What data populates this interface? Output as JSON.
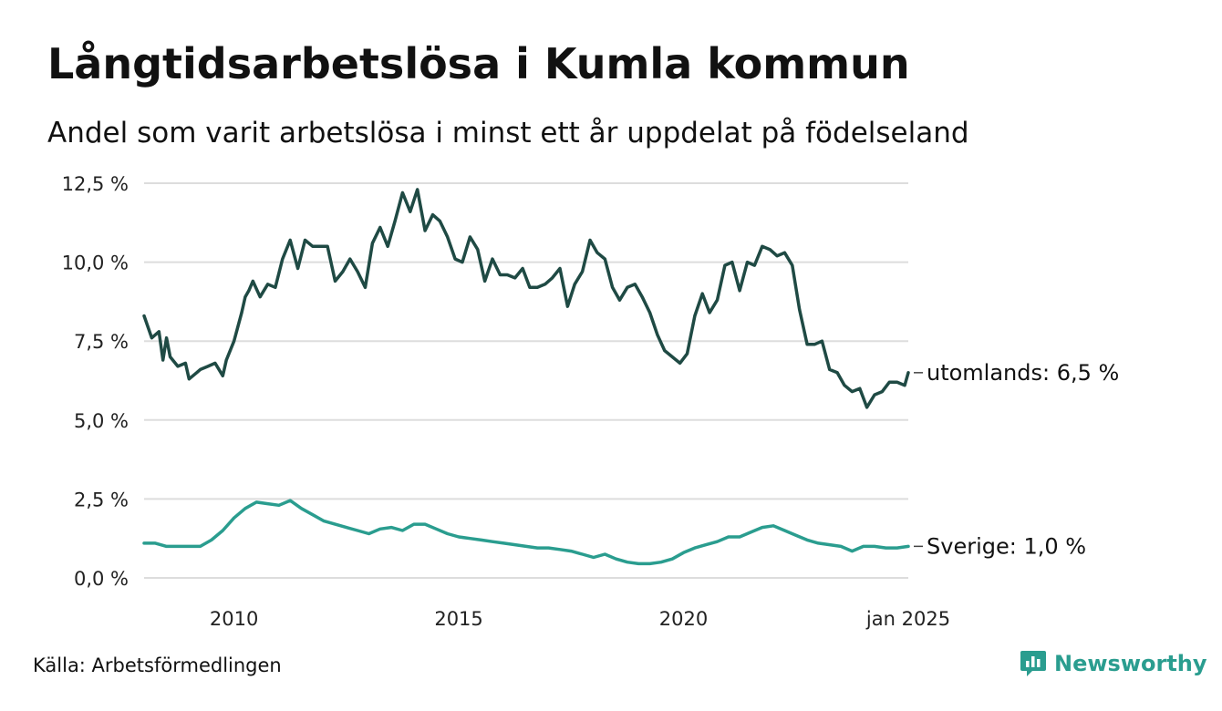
{
  "chart_data": {
    "type": "line",
    "title": "Långtidsarbetslösa i Kumla kommun",
    "subtitle": "Andel som varit arbetslösa i minst ett år uppdelat på födelseland",
    "ylim": [
      0,
      12.5
    ],
    "yticks": [
      0,
      2.5,
      5,
      7.5,
      10,
      12.5
    ],
    "ytick_labels": [
      "0,0 %",
      "2,5 %",
      "5,0 %",
      "7,5 %",
      "10,0 %",
      "12,5 %"
    ],
    "xlim": [
      2008.0,
      2025.0
    ],
    "xticks": [
      2010,
      2015,
      2020,
      2025
    ],
    "xtick_labels": [
      "2010",
      "2015",
      "2020",
      "jan 2025"
    ],
    "grid": true,
    "legend": "end-of-line labels",
    "series": [
      {
        "name": "utomlands",
        "end_label": "utomlands: 6,5 %",
        "color": "#1f4a44",
        "x": [
          2008.0,
          2008.17,
          2008.33,
          2008.42,
          2008.5,
          2008.58,
          2008.75,
          2008.92,
          2009.0,
          2009.17,
          2009.25,
          2009.42,
          2009.58,
          2009.75,
          2009.83,
          2010.0,
          2010.17,
          2010.25,
          2010.33,
          2010.42,
          2010.58,
          2010.75,
          2010.92,
          2011.08,
          2011.25,
          2011.42,
          2011.58,
          2011.75,
          2011.92,
          2012.08,
          2012.25,
          2012.42,
          2012.58,
          2012.75,
          2012.92,
          2013.08,
          2013.25,
          2013.42,
          2013.58,
          2013.75,
          2013.92,
          2014.08,
          2014.25,
          2014.42,
          2014.58,
          2014.75,
          2014.92,
          2015.08,
          2015.25,
          2015.42,
          2015.58,
          2015.75,
          2015.92,
          2016.08,
          2016.25,
          2016.42,
          2016.58,
          2016.75,
          2016.92,
          2017.08,
          2017.25,
          2017.42,
          2017.58,
          2017.75,
          2017.92,
          2018.08,
          2018.25,
          2018.42,
          2018.58,
          2018.75,
          2018.92,
          2019.08,
          2019.25,
          2019.42,
          2019.58,
          2019.75,
          2019.92,
          2020.08,
          2020.25,
          2020.42,
          2020.58,
          2020.75,
          2020.92,
          2021.08,
          2021.25,
          2021.42,
          2021.58,
          2021.75,
          2021.92,
          2022.08,
          2022.25,
          2022.42,
          2022.58,
          2022.75,
          2022.92,
          2023.08,
          2023.25,
          2023.42,
          2023.58,
          2023.75,
          2023.92,
          2024.08,
          2024.25,
          2024.42,
          2024.58,
          2024.75,
          2024.92,
          2025.0
        ],
        "values": [
          8.3,
          7.6,
          7.8,
          6.9,
          7.6,
          7.0,
          6.7,
          6.8,
          6.3,
          6.5,
          6.6,
          6.7,
          6.8,
          6.4,
          6.9,
          7.5,
          8.4,
          8.9,
          9.1,
          9.4,
          8.9,
          9.3,
          9.2,
          10.1,
          10.7,
          9.8,
          10.7,
          10.5,
          10.5,
          10.5,
          9.4,
          9.7,
          10.1,
          9.7,
          9.2,
          10.6,
          11.1,
          10.5,
          11.3,
          12.2,
          11.6,
          12.3,
          11.0,
          11.5,
          11.3,
          10.8,
          10.1,
          10.0,
          10.8,
          10.4,
          9.4,
          10.1,
          9.6,
          9.6,
          9.5,
          9.8,
          9.2,
          9.2,
          9.3,
          9.5,
          9.8,
          8.6,
          9.3,
          9.7,
          10.7,
          10.3,
          10.1,
          9.2,
          8.8,
          9.2,
          9.3,
          8.9,
          8.4,
          7.7,
          7.2,
          7.0,
          6.8,
          7.1,
          8.3,
          9.0,
          8.4,
          8.8,
          9.9,
          10.0,
          9.1,
          10.0,
          9.9,
          10.5,
          10.4,
          10.2,
          10.3,
          9.9,
          8.5,
          7.4,
          7.4,
          7.5,
          6.6,
          6.5,
          6.1,
          5.9,
          6.0,
          5.4,
          5.8,
          5.9,
          6.2,
          6.2,
          6.1,
          6.5
        ]
      },
      {
        "name": "Sverige",
        "end_label": "Sverige: 1,0 %",
        "color": "#2a9d8f",
        "x": [
          2008.0,
          2008.25,
          2008.5,
          2008.75,
          2009.0,
          2009.25,
          2009.5,
          2009.75,
          2010.0,
          2010.25,
          2010.5,
          2010.75,
          2011.0,
          2011.25,
          2011.5,
          2011.75,
          2012.0,
          2012.25,
          2012.5,
          2012.75,
          2013.0,
          2013.25,
          2013.5,
          2013.75,
          2014.0,
          2014.25,
          2014.5,
          2014.75,
          2015.0,
          2015.25,
          2015.5,
          2015.75,
          2016.0,
          2016.25,
          2016.5,
          2016.75,
          2017.0,
          2017.25,
          2017.5,
          2017.75,
          2018.0,
          2018.25,
          2018.5,
          2018.75,
          2019.0,
          2019.25,
          2019.5,
          2019.75,
          2020.0,
          2020.25,
          2020.5,
          2020.75,
          2021.0,
          2021.25,
          2021.5,
          2021.75,
          2022.0,
          2022.25,
          2022.5,
          2022.75,
          2023.0,
          2023.25,
          2023.5,
          2023.75,
          2024.0,
          2024.25,
          2024.5,
          2024.75,
          2025.0
        ],
        "values": [
          1.1,
          1.1,
          1.0,
          1.0,
          1.0,
          1.0,
          1.2,
          1.5,
          1.9,
          2.2,
          2.4,
          2.35,
          2.3,
          2.45,
          2.2,
          2.0,
          1.8,
          1.7,
          1.6,
          1.5,
          1.4,
          1.55,
          1.6,
          1.5,
          1.7,
          1.7,
          1.55,
          1.4,
          1.3,
          1.25,
          1.2,
          1.15,
          1.1,
          1.05,
          1.0,
          0.95,
          0.95,
          0.9,
          0.85,
          0.75,
          0.65,
          0.75,
          0.6,
          0.5,
          0.45,
          0.45,
          0.5,
          0.6,
          0.8,
          0.95,
          1.05,
          1.15,
          1.3,
          1.3,
          1.45,
          1.6,
          1.65,
          1.5,
          1.35,
          1.2,
          1.1,
          1.05,
          1.0,
          0.85,
          1.0,
          1.0,
          0.95,
          0.95,
          1.0
        ]
      }
    ],
    "source": "Källa: Arbetsförmedlingen",
    "brand": "Newsworthy",
    "brand_icon": "newsworthy-logo-icon"
  }
}
